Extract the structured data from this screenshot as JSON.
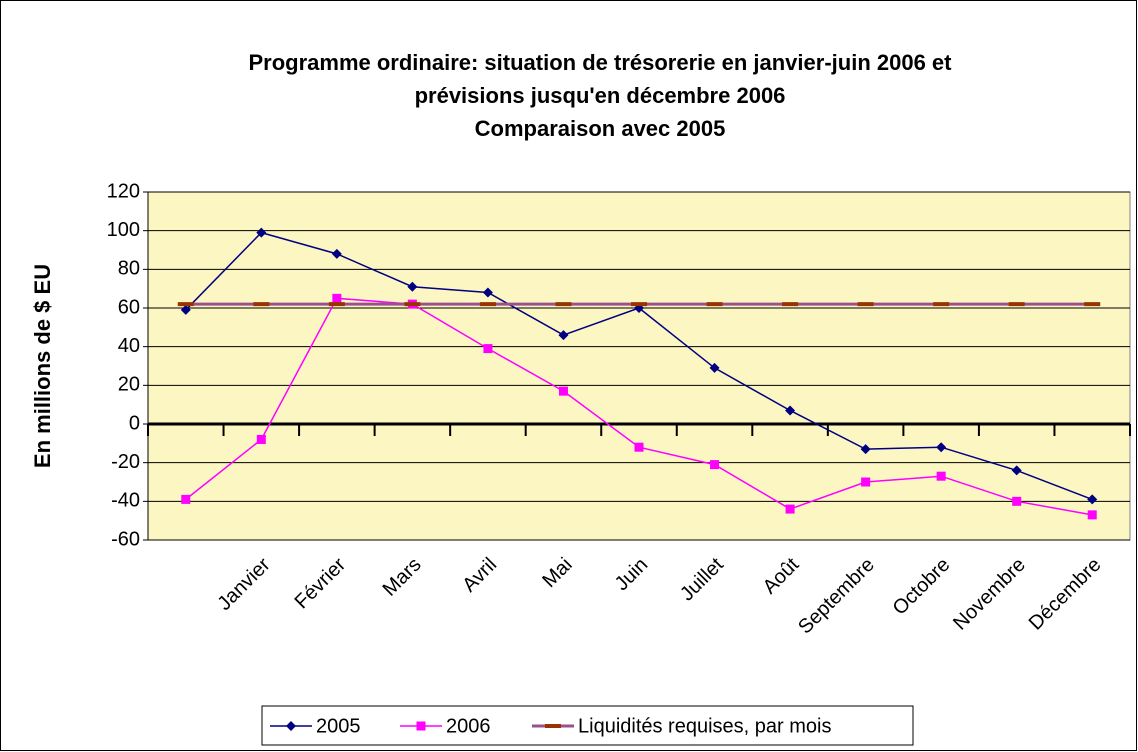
{
  "chart_data": {
    "type": "line",
    "title": [
      "Programme ordinaire: situation de trésorerie en janvier-juin 2006 et",
      "prévisions jusqu'en décembre 2006",
      "Comparaison avec 2005"
    ],
    "y_label": "En millions de $ EU",
    "categories": [
      null,
      "Janvier",
      "Février",
      "Mars",
      "Avril",
      "Mai",
      "Juin",
      "Juillet",
      "Août",
      "Septembre",
      "Octobre",
      "Novembre",
      "Décembre"
    ],
    "series": [
      {
        "name": "2005",
        "color": "#000080",
        "marker": "diamond",
        "values": [
          59,
          99,
          88,
          71,
          68,
          46,
          60,
          29,
          7,
          -13,
          -12,
          -24,
          -39
        ]
      },
      {
        "name": "2006",
        "color": "#ff00ff",
        "marker": "square",
        "values": [
          -39,
          -8,
          65,
          62,
          39,
          17,
          -12,
          -21,
          -44,
          -30,
          -27,
          -40,
          -47
        ]
      },
      {
        "name": "Liquidités requises, par mois",
        "color": "#993300",
        "marker": "dash",
        "values": [
          62,
          62,
          62,
          62,
          62,
          62,
          62,
          62,
          62,
          62,
          62,
          62,
          62
        ]
      }
    ],
    "ylim": [
      -60,
      120
    ],
    "yticks": [
      -60,
      -40,
      -20,
      0,
      20,
      40,
      60,
      80,
      100,
      120
    ],
    "grid": true,
    "legend": "bottom"
  }
}
